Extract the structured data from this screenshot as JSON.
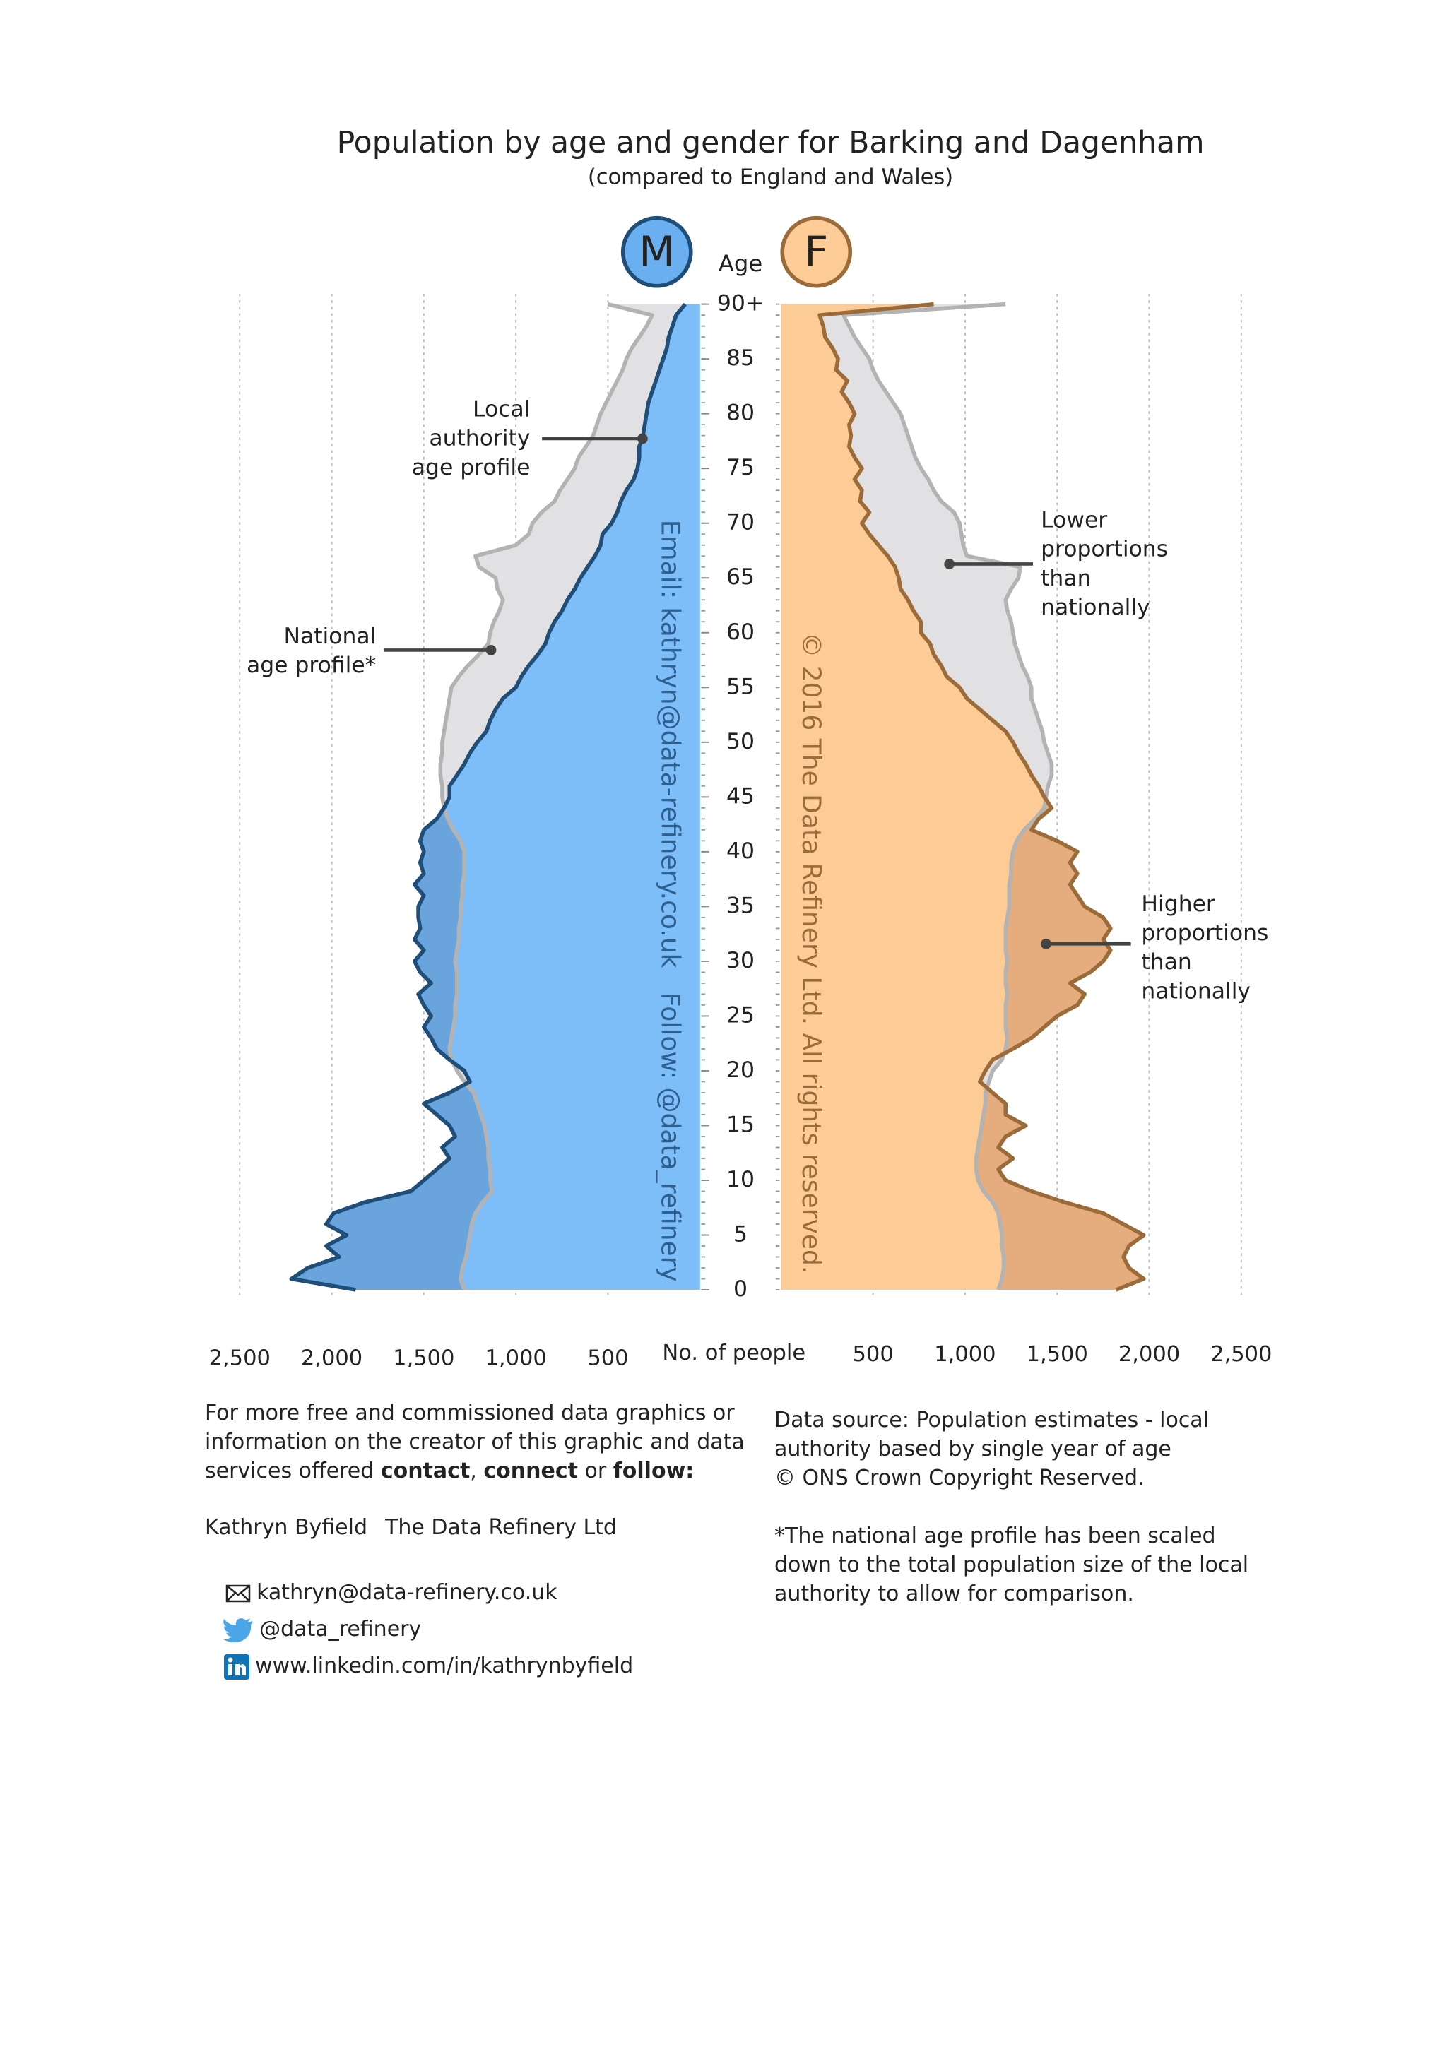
{
  "chart_data": {
    "type": "pyramid",
    "title": "Population by age and gender for Barking and Dagenham",
    "subtitle": "(compared to England and Wales)",
    "age_label": "Age",
    "x_label": "No. of people",
    "ylim": [
      0,
      90
    ],
    "yticks": [
      0,
      5,
      10,
      15,
      20,
      25,
      30,
      35,
      40,
      45,
      50,
      55,
      60,
      65,
      70,
      75,
      80,
      85,
      {
        "value": 90,
        "label": "90+"
      }
    ],
    "xlim": [
      0,
      2500
    ],
    "xticks": [
      500,
      {
        "value": 1000,
        "label": "1,000"
      },
      {
        "value": 1500,
        "label": "1,500"
      },
      {
        "value": 2000,
        "label": "2,000"
      },
      {
        "value": 2500,
        "label": "2,500"
      }
    ],
    "grid": true,
    "ages": [
      0,
      1,
      2,
      3,
      4,
      5,
      6,
      7,
      8,
      9,
      10,
      11,
      12,
      13,
      14,
      15,
      16,
      17,
      18,
      19,
      20,
      21,
      22,
      23,
      24,
      25,
      26,
      27,
      28,
      29,
      30,
      31,
      32,
      33,
      34,
      35,
      36,
      37,
      38,
      39,
      40,
      41,
      42,
      43,
      44,
      45,
      46,
      47,
      48,
      49,
      50,
      51,
      52,
      53,
      54,
      55,
      56,
      57,
      58,
      59,
      60,
      61,
      62,
      63,
      64,
      65,
      66,
      67,
      68,
      69,
      70,
      71,
      72,
      73,
      74,
      75,
      76,
      77,
      78,
      79,
      80,
      81,
      82,
      83,
      84,
      85,
      86,
      87,
      88,
      89,
      90
    ],
    "panels": [
      {
        "label": "M",
        "side": "left",
        "local_color": "#1f4e79",
        "national_color": "#b3b3b3",
        "fill": "#7dbdf8",
        "excess_fill": "#6aa4dd",
        "deficit_fill": "#e1e1e4",
        "badge_fill": "#6ab0f0",
        "watermark": "Email: kathryn@data-refinery.co.uk   Follow: @data_refinery",
        "watermark_color": "#2d5f8f",
        "local": [
          1870,
          2220,
          2130,
          1960,
          2030,
          1920,
          2030,
          1990,
          1820,
          1570,
          1500,
          1430,
          1360,
          1400,
          1330,
          1360,
          1430,
          1500,
          1360,
          1250,
          1280,
          1360,
          1430,
          1460,
          1500,
          1460,
          1500,
          1530,
          1460,
          1520,
          1550,
          1500,
          1550,
          1520,
          1530,
          1530,
          1500,
          1550,
          1500,
          1520,
          1500,
          1520,
          1500,
          1430,
          1390,
          1360,
          1360,
          1320,
          1280,
          1250,
          1210,
          1160,
          1140,
          1110,
          1070,
          1000,
          970,
          930,
          880,
          840,
          820,
          790,
          750,
          720,
          680,
          650,
          610,
          570,
          540,
          530,
          480,
          450,
          430,
          400,
          360,
          340,
          330,
          330,
          310,
          300,
          290,
          280,
          260,
          240,
          220,
          200,
          180,
          170,
          150,
          130,
          80
        ],
        "national": [
          1280,
          1300,
          1290,
          1270,
          1260,
          1250,
          1240,
          1220,
          1180,
          1130,
          1140,
          1140,
          1150,
          1150,
          1160,
          1170,
          1190,
          1210,
          1230,
          1280,
          1320,
          1350,
          1360,
          1350,
          1340,
          1330,
          1330,
          1320,
          1320,
          1320,
          1330,
          1320,
          1310,
          1310,
          1300,
          1300,
          1290,
          1290,
          1280,
          1280,
          1280,
          1300,
          1340,
          1370,
          1390,
          1400,
          1400,
          1410,
          1410,
          1400,
          1400,
          1390,
          1380,
          1370,
          1360,
          1350,
          1310,
          1260,
          1200,
          1150,
          1140,
          1120,
          1090,
          1070,
          1100,
          1110,
          1200,
          1220,
          1000,
          930,
          910,
          860,
          790,
          760,
          720,
          680,
          660,
          620,
          580,
          560,
          540,
          510,
          480,
          450,
          420,
          400,
          370,
          330,
          290,
          260,
          500
        ]
      },
      {
        "label": "F",
        "side": "right",
        "local_color": "#9c6b3a",
        "national_color": "#b3b3b3",
        "fill": "#fccb96",
        "excess_fill": "#e5ad7d",
        "deficit_fill": "#e1e1e4",
        "badge_fill": "#fccb96",
        "watermark": "© 2016 The Data Refinery Ltd. All rights reserved.",
        "watermark_color": "#9c6b3a",
        "local": [
          1820,
          1970,
          1890,
          1860,
          1890,
          1970,
          1860,
          1750,
          1540,
          1360,
          1220,
          1180,
          1260,
          1180,
          1220,
          1330,
          1220,
          1220,
          1150,
          1080,
          1110,
          1150,
          1260,
          1360,
          1430,
          1500,
          1610,
          1650,
          1570,
          1680,
          1750,
          1790,
          1750,
          1790,
          1750,
          1650,
          1610,
          1570,
          1610,
          1570,
          1610,
          1500,
          1360,
          1400,
          1470,
          1430,
          1400,
          1360,
          1330,
          1290,
          1260,
          1220,
          1150,
          1080,
          1010,
          970,
          900,
          870,
          830,
          810,
          760,
          760,
          720,
          690,
          650,
          640,
          620,
          580,
          530,
          480,
          440,
          480,
          430,
          440,
          400,
          440,
          400,
          370,
          380,
          370,
          400,
          370,
          330,
          360,
          300,
          310,
          280,
          240,
          230,
          210,
          830
        ],
        "national": [
          1180,
          1200,
          1210,
          1210,
          1200,
          1200,
          1190,
          1180,
          1150,
          1100,
          1070,
          1060,
          1060,
          1070,
          1080,
          1090,
          1100,
          1110,
          1110,
          1130,
          1150,
          1200,
          1220,
          1230,
          1220,
          1220,
          1220,
          1230,
          1220,
          1220,
          1230,
          1220,
          1220,
          1220,
          1230,
          1240,
          1240,
          1240,
          1250,
          1250,
          1260,
          1280,
          1320,
          1380,
          1430,
          1440,
          1450,
          1470,
          1470,
          1450,
          1430,
          1420,
          1400,
          1380,
          1360,
          1360,
          1340,
          1310,
          1290,
          1270,
          1260,
          1250,
          1230,
          1220,
          1250,
          1290,
          1300,
          1010,
          990,
          980,
          970,
          940,
          870,
          830,
          800,
          760,
          730,
          710,
          690,
          670,
          650,
          610,
          570,
          530,
          500,
          480,
          440,
          400,
          370,
          340,
          1220
        ]
      }
    ],
    "annotations": [
      {
        "lines": [
          "Local",
          "authority",
          "age profile"
        ]
      },
      {
        "lines": [
          "National",
          "age profile*"
        ]
      },
      {
        "lines": [
          "Lower",
          "proportions",
          "than",
          "nationally"
        ]
      },
      {
        "lines": [
          "Higher",
          "proportions",
          "than",
          "nationally"
        ]
      }
    ]
  },
  "footer": {
    "intro": [
      [
        {
          "text": "For more free and commissioned data graphics or",
          "bold": false
        }
      ],
      [
        {
          "text": "information on the creator of this graphic and data",
          "bold": false
        }
      ],
      [
        {
          "text": "services offered ",
          "bold": false
        },
        {
          "text": "contact",
          "bold": true
        },
        {
          "text": ", ",
          "bold": false
        },
        {
          "text": "connect",
          "bold": true
        },
        {
          "text": " or ",
          "bold": false
        },
        {
          "text": "follow:",
          "bold": true
        }
      ]
    ],
    "name": "Kathryn Byfield",
    "company": "The Data Refinery Ltd",
    "email": "kathryn@data-refinery.co.uk",
    "twitter": "@data_refinery",
    "linkedin": "www.linkedin.com/in/kathrynbyfield",
    "source": [
      "Data source: Population estimates - local",
      "authority based by single year of age",
      "© ONS Crown Copyright Reserved."
    ],
    "note": [
      "*The national age profile has been scaled",
      "down to the total population size of the local",
      "authority to allow for comparison."
    ]
  }
}
